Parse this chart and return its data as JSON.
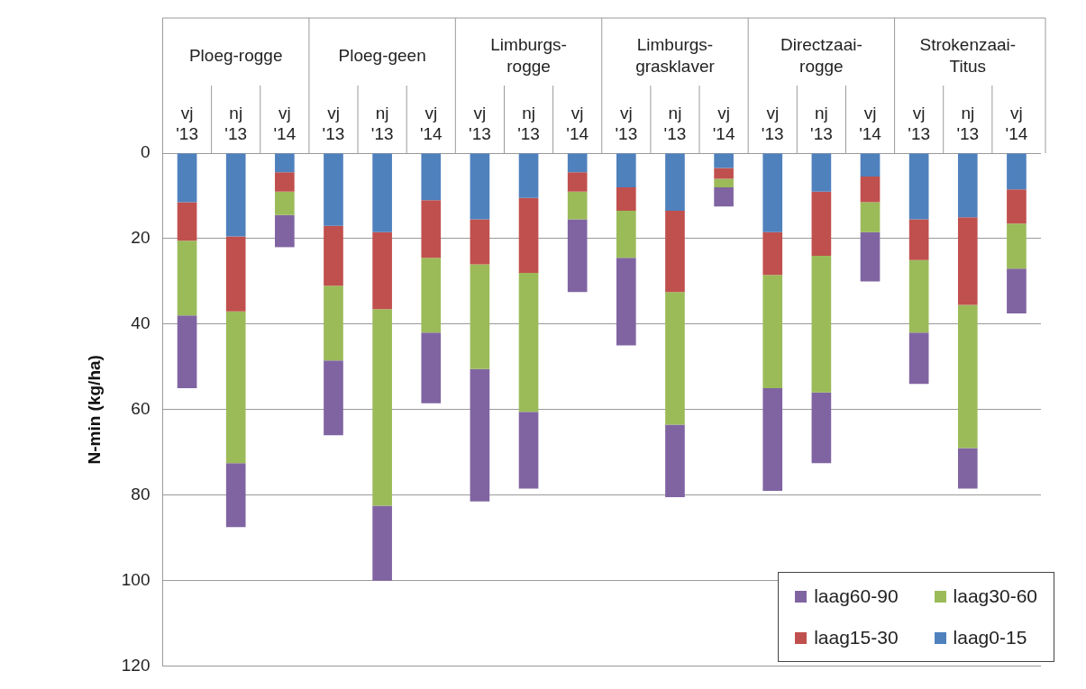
{
  "chart_data": {
    "type": "bar",
    "stacked": true,
    "ylabel": "N-min (kg/ha)",
    "categories": [
      "vj '13",
      "nj '13",
      "vj '14",
      "vj '13",
      "nj '13",
      "vj '14",
      "vj '13",
      "nj '13",
      "vj '14",
      "vj '13",
      "nj '13",
      "vj '14",
      "vj '13",
      "nj '13",
      "vj '14",
      "vj '13",
      "nj '13",
      "vj '14"
    ],
    "annotations": [
      "Ploeg-rogge",
      "Ploeg-geen",
      "Limburgs-rogge",
      "Limburgs-grasklaver",
      "Directzaai-rogge",
      "Strokenzaai-Titus"
    ],
    "series": [
      {
        "name": "laag0-15",
        "color": "#4f81bd",
        "values": [
          11.5,
          19.5,
          4.5,
          17,
          18.5,
          11,
          15.5,
          10.5,
          4.5,
          8,
          13.5,
          3.5,
          18.5,
          9,
          5.5,
          15.5,
          15,
          8.5
        ]
      },
      {
        "name": "laag15-30",
        "color": "#c0504d",
        "values": [
          9,
          17.5,
          4.5,
          14,
          18,
          13.5,
          10.5,
          17.5,
          4.5,
          5.5,
          19,
          2.5,
          10,
          15,
          6,
          9.5,
          20.5,
          8
        ]
      },
      {
        "name": "laag30-60",
        "color": "#9bbb59",
        "values": [
          17.5,
          35.5,
          5.5,
          17.5,
          46,
          17.5,
          24.5,
          32.5,
          6.5,
          11,
          31,
          2,
          26.5,
          32,
          7,
          17,
          33.5,
          10.5
        ]
      },
      {
        "name": "laag60-90",
        "color": "#8064a2",
        "values": [
          17,
          15,
          7.5,
          17.5,
          17.5,
          16.5,
          31,
          18,
          17,
          20.5,
          17,
          4.5,
          24,
          16.5,
          11.5,
          12,
          9.5,
          10.5
        ]
      }
    ],
    "ylim": [
      120,
      0
    ],
    "yticks": [
      0,
      20,
      40,
      60,
      80,
      100,
      120
    ],
    "grid": "y",
    "legend": "bottom right"
  }
}
